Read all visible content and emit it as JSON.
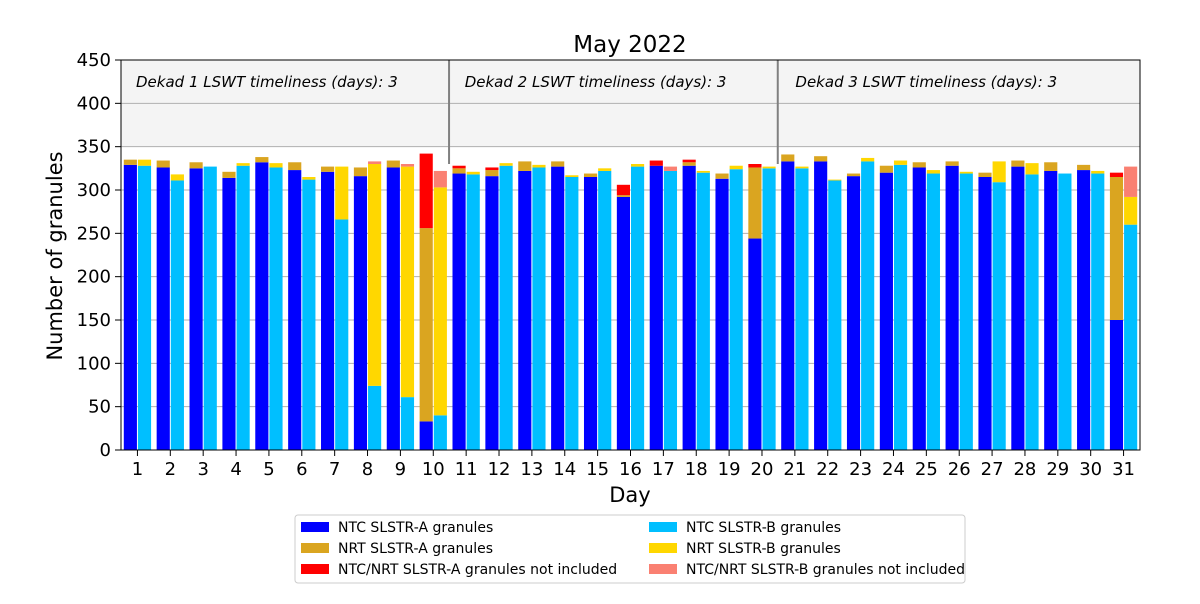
{
  "chart_data": {
    "type": "bar",
    "title": "May 2022",
    "xlabel": "Day",
    "ylabel": "Number of granules",
    "ylim": [
      0,
      450
    ],
    "yticks": [
      0,
      50,
      100,
      150,
      200,
      250,
      300,
      350,
      400,
      450
    ],
    "grid": true,
    "categories": [
      "1",
      "2",
      "3",
      "4",
      "5",
      "6",
      "7",
      "8",
      "9",
      "10",
      "11",
      "12",
      "13",
      "14",
      "15",
      "16",
      "17",
      "18",
      "19",
      "20",
      "21",
      "22",
      "23",
      "24",
      "25",
      "26",
      "27",
      "28",
      "29",
      "30",
      "31"
    ],
    "shaded_band": [
      350,
      450
    ],
    "annotations": [
      "Dekad 1 LSWT timeliness (days): 3",
      "Dekad 2 LSWT timeliness (days): 3",
      "Dekad 3 LSWT timeliness (days): 3"
    ],
    "dekad_separators_after_day": [
      10,
      20
    ],
    "legend_position": "below",
    "series": [
      {
        "name": "NTC SLSTR-A granules",
        "color": "#0000ff",
        "bar": "A",
        "values": [
          329,
          326,
          325,
          314,
          332,
          323,
          321,
          316,
          326,
          33,
          319,
          316,
          322,
          327,
          315,
          292,
          328,
          328,
          313,
          244,
          333,
          333,
          316,
          320,
          326,
          328,
          315,
          327,
          322,
          323,
          150
        ]
      },
      {
        "name": "NRT SLSTR-A granules",
        "color": "#daa520",
        "bar": "A",
        "values": [
          6,
          8,
          7,
          7,
          6,
          9,
          6,
          10,
          8,
          223,
          6,
          7,
          11,
          6,
          4,
          2,
          0,
          4,
          6,
          82,
          8,
          6,
          3,
          8,
          6,
          5,
          5,
          7,
          10,
          6,
          165
        ]
      },
      {
        "name": "NTC/NRT SLSTR-A granules not included",
        "color": "#ff0000",
        "bar": "A",
        "values": [
          0,
          0,
          0,
          0,
          0,
          0,
          0,
          0,
          0,
          86,
          3,
          3,
          0,
          0,
          0,
          12,
          6,
          3,
          0,
          4,
          0,
          0,
          0,
          0,
          0,
          0,
          0,
          0,
          0,
          0,
          5
        ]
      },
      {
        "name": "NTC SLSTR-B granules",
        "color": "#00bfff",
        "bar": "B",
        "values": [
          328,
          311,
          327,
          328,
          326,
          312,
          266,
          74,
          61,
          40,
          318,
          328,
          326,
          315,
          322,
          327,
          322,
          320,
          324,
          325,
          325,
          311,
          333,
          329,
          319,
          319,
          309,
          318,
          319,
          319,
          260
        ]
      },
      {
        "name": "NRT SLSTR-B granules",
        "color": "#ffd700",
        "bar": "B",
        "values": [
          7,
          7,
          0,
          3,
          5,
          3,
          61,
          256,
          266,
          263,
          3,
          3,
          3,
          2,
          3,
          3,
          0,
          2,
          4,
          2,
          2,
          1,
          4,
          5,
          4,
          2,
          24,
          13,
          0,
          3,
          32
        ]
      },
      {
        "name": "NTC/NRT SLSTR-B granules not included",
        "color": "#fa8072",
        "bar": "B",
        "values": [
          0,
          0,
          0,
          0,
          0,
          0,
          0,
          3,
          3,
          19,
          0,
          0,
          0,
          0,
          0,
          0,
          5,
          0,
          0,
          0,
          0,
          0,
          0,
          0,
          0,
          0,
          0,
          0,
          0,
          0,
          35
        ]
      }
    ]
  }
}
